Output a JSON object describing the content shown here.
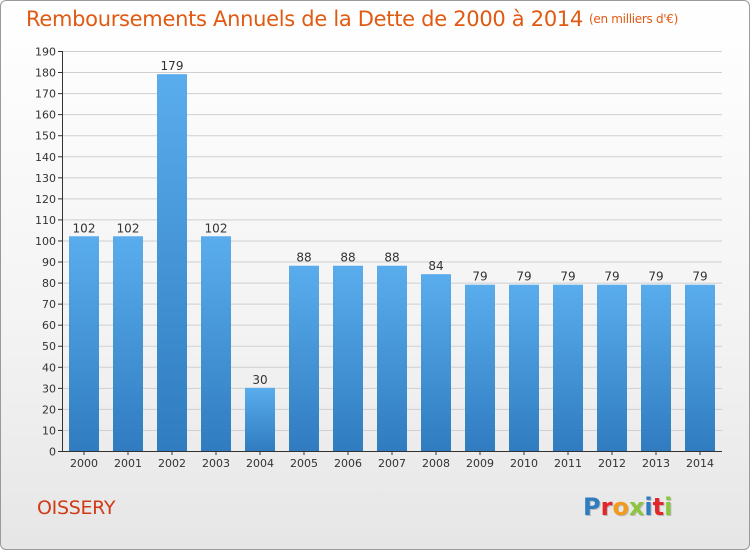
{
  "header": {
    "title": "Remboursements Annuels de la Dette de 2000 à 2014",
    "unit": "(en milliers d'€)"
  },
  "footer": {
    "commune": "OISSERY",
    "logo_text": "Proxiti"
  },
  "colors": {
    "title": "#e05a12",
    "commune": "#d13a16",
    "bar_top": "#5aadec",
    "bar_bottom": "#2f7cc0",
    "grid": "#cfcfcf",
    "axis": "#333333",
    "logo_letters": [
      "#2f7cc0",
      "#e2262a",
      "#f29a1b",
      "#8cc63e",
      "#2f7cc0",
      "#e2262a",
      "#8cc63e"
    ]
  },
  "chart_data": {
    "type": "bar",
    "title": "Remboursements Annuels de la Dette de 2000 à 2014",
    "unit": "(en milliers d'€)",
    "categories": [
      "2000",
      "2001",
      "2002",
      "2003",
      "2004",
      "2005",
      "2006",
      "2007",
      "2008",
      "2009",
      "2010",
      "2011",
      "2012",
      "2013",
      "2014"
    ],
    "values": [
      102,
      102,
      179,
      102,
      30,
      88,
      88,
      88,
      84,
      79,
      79,
      79,
      79,
      79,
      79
    ],
    "data_labels": [
      "102",
      "102",
      "179",
      "102",
      "30",
      "88",
      "88",
      "88",
      "84",
      "79",
      "79",
      "79",
      "79",
      "79",
      "79"
    ],
    "ylim": [
      0,
      190
    ],
    "yticks": [
      0,
      10,
      20,
      30,
      40,
      50,
      60,
      70,
      80,
      90,
      100,
      110,
      120,
      130,
      140,
      150,
      160,
      170,
      180,
      190
    ],
    "grid": true,
    "legend": "none"
  }
}
